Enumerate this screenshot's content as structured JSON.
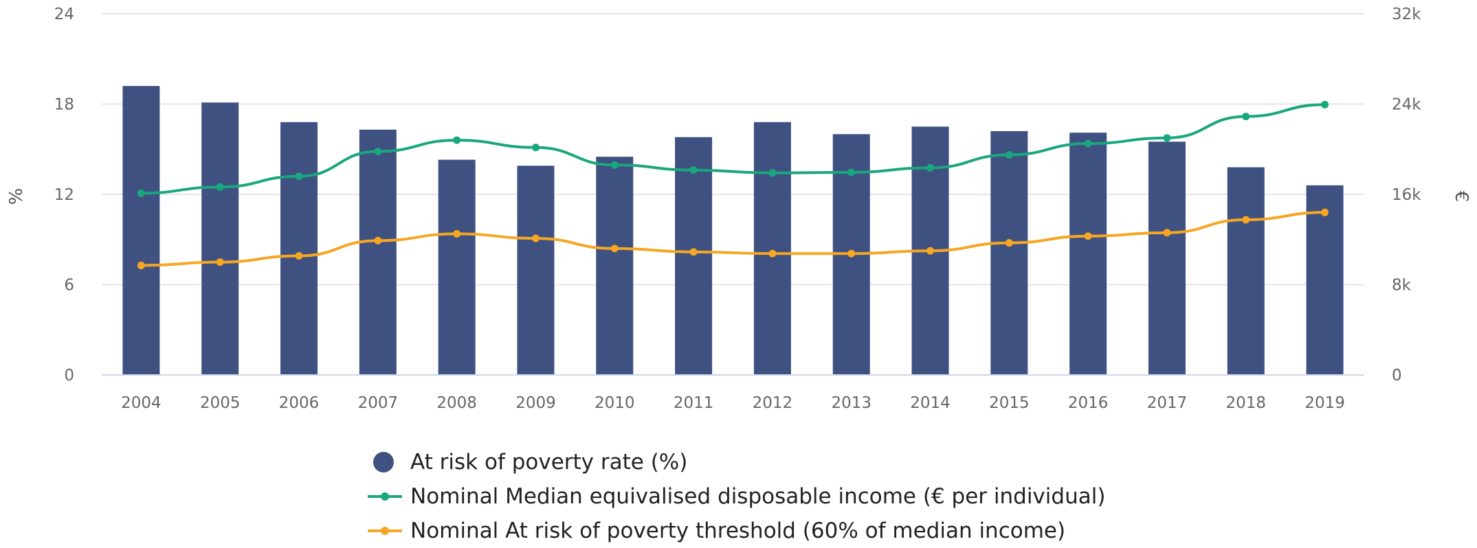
{
  "chart_data": {
    "type": "bar",
    "title": "",
    "categories": [
      "2004",
      "2005",
      "2006",
      "2007",
      "2008",
      "2009",
      "2010",
      "2011",
      "2012",
      "2013",
      "2014",
      "2015",
      "2016",
      "2017",
      "2018",
      "2019"
    ],
    "y_left": {
      "label": "%",
      "ticks": [
        "0",
        "6",
        "12",
        "18",
        "24"
      ],
      "ylim": [
        0,
        24
      ]
    },
    "y_right": {
      "label": "€",
      "ticks": [
        "0",
        "8k",
        "16k",
        "24k",
        "32k"
      ],
      "ylim": [
        0,
        32000
      ]
    },
    "grid": true,
    "legend_position": "bottom-center",
    "series": [
      {
        "name": "At risk of poverty rate (%)",
        "type": "bar",
        "axis": "left",
        "color": "#3e5180",
        "values": [
          19.2,
          18.1,
          16.8,
          16.3,
          14.3,
          13.9,
          14.5,
          15.8,
          16.8,
          16.0,
          16.5,
          16.2,
          16.1,
          15.5,
          13.8,
          12.6
        ]
      },
      {
        "name": "Nominal Median equivalised disposable income (€ per individual)",
        "type": "line",
        "axis": "right",
        "color": "#1aa67e",
        "values": [
          16100,
          16650,
          17600,
          19800,
          20800,
          20150,
          18600,
          18150,
          17900,
          17950,
          18350,
          19500,
          20500,
          21000,
          22900,
          23950
        ]
      },
      {
        "name": "Nominal At risk of poverty threshold (60% of median income)",
        "type": "line",
        "axis": "right",
        "color": "#f6a623",
        "values": [
          9700,
          10000,
          10550,
          11900,
          12500,
          12100,
          11200,
          10900,
          10750,
          10750,
          11000,
          11700,
          12300,
          12600,
          13750,
          14400
        ]
      }
    ]
  }
}
